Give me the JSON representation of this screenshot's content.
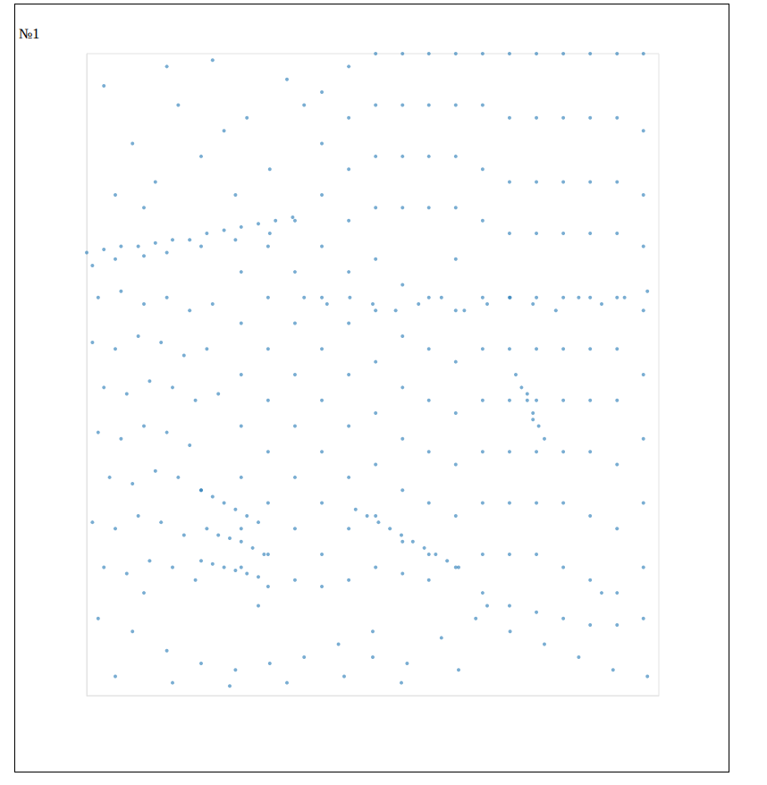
{
  "chart_data": {
    "type": "scatter",
    "title": "№1",
    "color": "#1f77b4",
    "grid": false,
    "tick_labels": false,
    "xlim": [
      0,
      100
    ],
    "ylim": [
      0,
      100
    ],
    "x": [
      27,
      27,
      27,
      27,
      27,
      27,
      27,
      31.7,
      31.7,
      31.7,
      31.7,
      31.7,
      31.7,
      31.7,
      31.7,
      36.4,
      36.4,
      36.4,
      36.4,
      36.4,
      36.4,
      36.4,
      36.4,
      41.1,
      41.1,
      41.1,
      41.1,
      41.1,
      41.1,
      41.1,
      41.1,
      41.1,
      41.1,
      41.1,
      45.8,
      45.8,
      45.8,
      45.8,
      45.8,
      45.8,
      45.8,
      45.8,
      45.8,
      45.8,
      45.8,
      50.5,
      50.5,
      50.5,
      50.5,
      50.5,
      50.5,
      50.5,
      50.5,
      50.5,
      50.5,
      50.5,
      55.2,
      55.2,
      55.2,
      55.2,
      55.2,
      55.2,
      55.2,
      55.2,
      55.2,
      55.2,
      55.2,
      59.8,
      59.8,
      59.8,
      59.8,
      59.8,
      59.8,
      59.8,
      59.8,
      59.8,
      59.8,
      59.8,
      64.5,
      64.5,
      64.5,
      64.5,
      64.5,
      64.5,
      64.5,
      64.5,
      64.5,
      64.5,
      64.5,
      69.2,
      69.2,
      69.2,
      69.2,
      69.2,
      69.2,
      69.2,
      69.2,
      69.2,
      69.2,
      69.2,
      73.9,
      73.9,
      73.9,
      73.9,
      73.9,
      73.9,
      73.9,
      73.9,
      73.9,
      73.9,
      73.9,
      78.6,
      78.6,
      78.6,
      78.6,
      78.6,
      78.6,
      78.6,
      78.6,
      78.6,
      78.6,
      78.6,
      83.3,
      83.3,
      83.3,
      83.3,
      83.3,
      83.3,
      83.3,
      83.3,
      83.3,
      83.3,
      83.3,
      88,
      88,
      88,
      88,
      88,
      88,
      88,
      88,
      88,
      88,
      88,
      92.7,
      92.7,
      92.7,
      92.7,
      92.7,
      92.7,
      92.7,
      92.7,
      92.7,
      92.7,
      92.7,
      97.3,
      97.3,
      97.3,
      97.3,
      97.3,
      97.3,
      97.3,
      97.3,
      97.3,
      97.3,
      38,
      42,
      46,
      50,
      54,
      58,
      62,
      66,
      70,
      74,
      78,
      82,
      86,
      90,
      94,
      98,
      0,
      3,
      6,
      9,
      12,
      15,
      18,
      21,
      24,
      27,
      30,
      33,
      36,
      1,
      5,
      10,
      14,
      20,
      26,
      32,
      2,
      6,
      10,
      14,
      18,
      22,
      1,
      5,
      9,
      13,
      17,
      21,
      3,
      7,
      11,
      15,
      19,
      23,
      2,
      6,
      10,
      14,
      18,
      4,
      8,
      12,
      16,
      20,
      1,
      5,
      9,
      13,
      17,
      3,
      7,
      11,
      15,
      19,
      5,
      12,
      20,
      28,
      35,
      8,
      16,
      24,
      32,
      3,
      14,
      26,
      38,
      10,
      22,
      20,
      22,
      24,
      26,
      28,
      30,
      21,
      23,
      25,
      27,
      29,
      31,
      20,
      22,
      24,
      26,
      28,
      30,
      47,
      49,
      51,
      53,
      55,
      57,
      59,
      61,
      63,
      65,
      75,
      76,
      77,
      78,
      79,
      80,
      77,
      78,
      2,
      8,
      14,
      20,
      26,
      32,
      38,
      44,
      50,
      56,
      62,
      68,
      74,
      80,
      86,
      92,
      98,
      5,
      15,
      25,
      35,
      45,
      55,
      65,
      10,
      30,
      50,
      70,
      90
    ],
    "values": [
      66,
      58,
      50,
      42,
      34,
      26,
      20,
      70,
      62,
      54,
      46,
      38,
      30,
      22,
      17,
      74,
      66,
      58,
      50,
      42,
      34,
      26,
      18,
      94,
      86,
      78,
      70,
      62,
      54,
      46,
      38,
      30,
      22,
      17,
      98,
      90,
      82,
      74,
      66,
      58,
      50,
      42,
      34,
      26,
      18,
      100,
      92,
      84,
      76,
      68,
      60,
      52,
      44,
      36,
      28,
      20,
      100,
      92,
      84,
      76,
      64,
      56,
      48,
      40,
      32,
      24,
      19,
      100,
      92,
      84,
      76,
      62,
      54,
      46,
      38,
      30,
      22,
      18,
      100,
      92,
      84,
      76,
      68,
      60,
      52,
      44,
      36,
      28,
      20,
      100,
      92,
      82,
      74,
      62,
      54,
      46,
      38,
      30,
      22,
      16,
      100,
      90,
      80,
      72,
      62,
      54,
      46,
      38,
      30,
      22,
      14,
      100,
      90,
      80,
      72,
      62,
      54,
      46,
      38,
      30,
      22,
      13,
      100,
      90,
      80,
      72,
      62,
      54,
      46,
      38,
      30,
      20,
      12,
      100,
      90,
      80,
      72,
      62,
      54,
      46,
      38,
      28,
      18,
      11,
      100,
      90,
      80,
      72,
      62,
      54,
      46,
      36,
      26,
      16,
      11,
      100,
      88,
      78,
      70,
      60,
      50,
      40,
      30,
      20,
      12,
      62,
      61,
      62,
      61,
      60,
      61,
      62,
      60,
      61,
      62,
      61,
      60,
      62,
      61,
      62,
      63,
      69,
      69.5,
      70,
      70,
      70.5,
      71,
      71,
      72,
      72.5,
      73,
      73.5,
      74,
      74.5,
      67,
      68,
      68.5,
      69,
      70,
      71,
      72,
      62,
      63,
      61,
      62,
      60,
      61,
      55,
      54,
      56,
      55,
      53,
      54,
      48,
      47,
      49,
      48,
      46,
      47,
      41,
      40,
      42,
      41,
      39,
      34,
      33,
      35,
      34,
      32,
      27,
      26,
      28,
      27,
      25,
      20,
      19,
      21,
      20,
      18,
      78,
      80,
      84,
      90,
      96,
      86,
      92,
      88,
      82,
      95,
      98,
      78,
      92,
      76,
      99,
      32,
      31,
      30,
      29,
      28,
      27,
      26,
      25,
      24.5,
      24,
      23,
      22,
      21,
      20.5,
      20,
      19.5,
      19,
      18.5,
      29,
      28,
      27,
      26,
      25,
      24,
      23,
      22,
      21,
      20,
      50,
      48,
      46,
      44,
      42,
      40,
      47,
      43,
      12,
      10,
      7,
      5,
      4,
      5,
      6,
      8,
      6,
      5,
      9,
      12,
      10,
      8,
      6,
      4,
      3,
      3,
      2,
      1.5,
      2,
      3,
      2,
      4,
      16,
      14,
      10,
      14,
      16
    ]
  }
}
